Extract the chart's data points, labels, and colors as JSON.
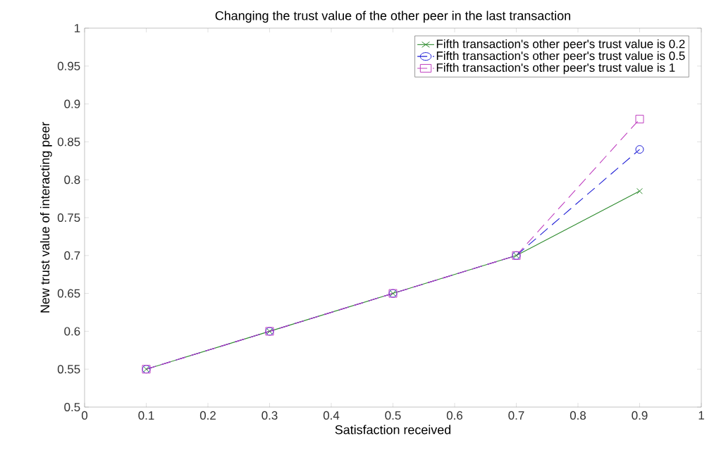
{
  "chart_data": {
    "type": "line",
    "title": "Changing the trust value of the other peer in the last transaction",
    "xlabel": "Satisfaction received",
    "ylabel": "New trust value of interacting peer",
    "x": [
      0.1,
      0.3,
      0.5,
      0.7,
      0.9
    ],
    "series": [
      {
        "name": "Fifth transaction's other peer's trust value is 0.2",
        "color": "#2e8b2e",
        "marker": "cross",
        "line_style": "solid",
        "values": [
          0.55,
          0.6,
          0.65,
          0.7,
          0.785
        ]
      },
      {
        "name": "Fifth transaction's other peer's trust value is 0.5",
        "color": "#1f1fd6",
        "marker": "circle",
        "line_style": "dashed",
        "values": [
          0.55,
          0.6,
          0.65,
          0.7,
          0.84
        ]
      },
      {
        "name": "Fifth transaction's other peer's trust value is 1",
        "color": "#c040c0",
        "marker": "square",
        "line_style": "dashed",
        "values": [
          0.55,
          0.6,
          0.65,
          0.7,
          0.88
        ]
      }
    ],
    "xlim": [
      0,
      1
    ],
    "xticks": [
      0,
      0.1,
      0.2,
      0.3,
      0.4,
      0.5,
      0.6,
      0.7,
      0.8,
      0.9,
      1
    ],
    "ylim": [
      0.5,
      1
    ],
    "yticks": [
      0.5,
      0.55,
      0.6,
      0.65,
      0.7,
      0.75,
      0.8,
      0.85,
      0.9,
      0.95,
      1
    ],
    "grid": false,
    "legend": "top right"
  }
}
